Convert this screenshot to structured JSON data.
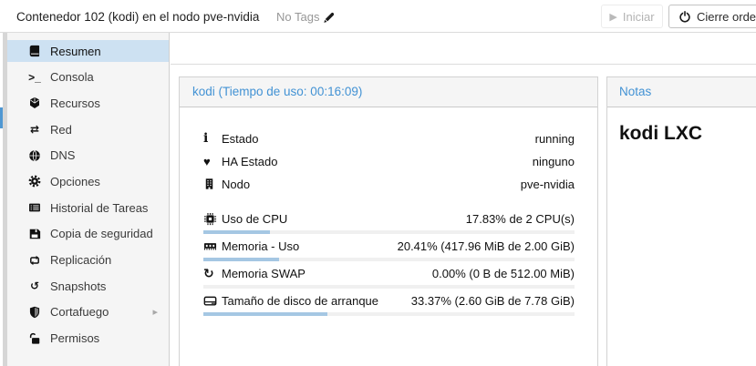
{
  "header": {
    "title": "Contenedor 102 (kodi) en el nodo pve-nvidia",
    "tags_label": "No Tags",
    "actions": [
      {
        "label": "Iniciar",
        "icon": "play-icon",
        "disabled": true
      },
      {
        "label": "Cierre ordena",
        "icon": "power-icon",
        "disabled": false
      }
    ]
  },
  "sidebar": {
    "items": [
      {
        "label": "Resumen",
        "icon": "book-icon",
        "selected": true
      },
      {
        "label": "Consola",
        "icon": "terminal-icon",
        "selected": false
      },
      {
        "label": "Recursos",
        "icon": "cube-icon",
        "selected": false
      },
      {
        "label": "Red",
        "icon": "network-icon",
        "selected": false
      },
      {
        "label": "DNS",
        "icon": "globe-icon",
        "selected": false
      },
      {
        "label": "Opciones",
        "icon": "gear-icon",
        "selected": false
      },
      {
        "label": "Historial de Tareas",
        "icon": "task-list-icon",
        "selected": false
      },
      {
        "label": "Copia de seguridad",
        "icon": "floppy-icon",
        "selected": false
      },
      {
        "label": "Replicación",
        "icon": "replication-icon",
        "selected": false
      },
      {
        "label": "Snapshots",
        "icon": "history-icon",
        "selected": false
      },
      {
        "label": "Cortafuego",
        "icon": "shield-icon",
        "selected": false,
        "has_submenu": true
      },
      {
        "label": "Permisos",
        "icon": "unlock-icon",
        "selected": false
      }
    ]
  },
  "summary": {
    "panel_title": "kodi (Tiempo de uso: 00:16:09)",
    "status_rows": [
      {
        "icon": "info-icon",
        "label": "Estado",
        "value": "running"
      },
      {
        "icon": "heartbeat-icon",
        "label": "HA Estado",
        "value": "ninguno"
      },
      {
        "icon": "building-icon",
        "label": "Nodo",
        "value": "pve-nvidia"
      }
    ],
    "usage_rows": [
      {
        "icon": "cpu-icon",
        "label": "Uso de CPU",
        "value": "17.83% de 2 CPU(s)",
        "percent": 17.83
      },
      {
        "icon": "memory-icon",
        "label": "Memoria - Uso",
        "value": "20.41% (417.96 MiB de 2.00 GiB)",
        "percent": 20.41
      },
      {
        "icon": "swap-icon",
        "label": "Memoria SWAP",
        "value": "0.00% (0 B de 512.00 MiB)",
        "percent": 0
      },
      {
        "icon": "hdd-icon",
        "label": "Tamaño de disco de arranque",
        "value": "33.37% (2.60 GiB de 7.78 GiB)",
        "percent": 33.37
      }
    ]
  },
  "notes": {
    "panel_title": "Notas",
    "content": "kodi LXC"
  },
  "icons": {
    "history_glyph": "↺",
    "network_glyph": "⇄",
    "replication_glyph": "⇆",
    "swap_glyph": "↻",
    "terminal_glyph": ">_",
    "play_glyph": "▶",
    "chevron_glyph": "▸",
    "info_glyph": "i",
    "heartbeat_glyph": "♥"
  },
  "colors": {
    "accent_blue": "#4292d4",
    "selected_item_bg": "#cde1f2",
    "selected_tree_edge": "#4f97d2",
    "progress_fill": "#a5c7e3",
    "progress_track": "#f0f0f0",
    "sidebar_bg": "#f5f5f5",
    "panel_header_bg": "#f5f5f5",
    "border": "#d2d2d2",
    "disabled_text": "#b3b3b3",
    "tags_text": "#979797"
  }
}
